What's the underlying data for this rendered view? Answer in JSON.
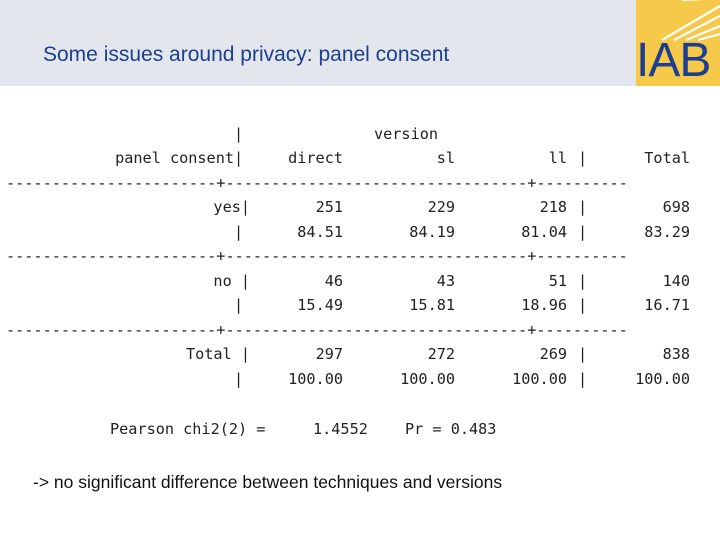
{
  "slide": {
    "title": "Some issues around privacy: panel consent",
    "logo_text": "IAB",
    "footer_note": "-> no significant difference between techniques and versions"
  },
  "table": {
    "header_top": {
      "sep": "|",
      "group": "version"
    },
    "header": {
      "rowvar": "panel consent",
      "sep": "|",
      "cols": [
        "direct",
        "sl",
        "ll"
      ],
      "sep2": "|",
      "total": "Total"
    },
    "divider": "-----------------------+---------------------------------+----------",
    "rows": [
      {
        "label": "yes|",
        "freq": [
          "251",
          "229",
          "218"
        ],
        "freq_total": "698",
        "pct": [
          "84.51",
          "84.19",
          "81.04"
        ],
        "pct_total": "83.29"
      },
      {
        "label": "no |",
        "freq": [
          "46",
          "43",
          "51"
        ],
        "freq_total": "140",
        "pct": [
          "15.49",
          "15.81",
          "18.96"
        ],
        "pct_total": "16.71"
      },
      {
        "label": "Total |",
        "freq": [
          "297",
          "272",
          "269"
        ],
        "freq_total": "838",
        "pct": [
          "100.00",
          "100.00",
          "100.00"
        ],
        "pct_total": "100.00"
      }
    ],
    "bar": "|",
    "chi2": {
      "label": "Pearson chi2(2) =",
      "value": "1.4552",
      "pr": "Pr = 0.483"
    }
  },
  "colors": {
    "title": "#1c3f8f",
    "header_band": "#e3e6ec",
    "logo_yellow": "#f7c94a",
    "logo_blue": "#1c3f8f"
  }
}
